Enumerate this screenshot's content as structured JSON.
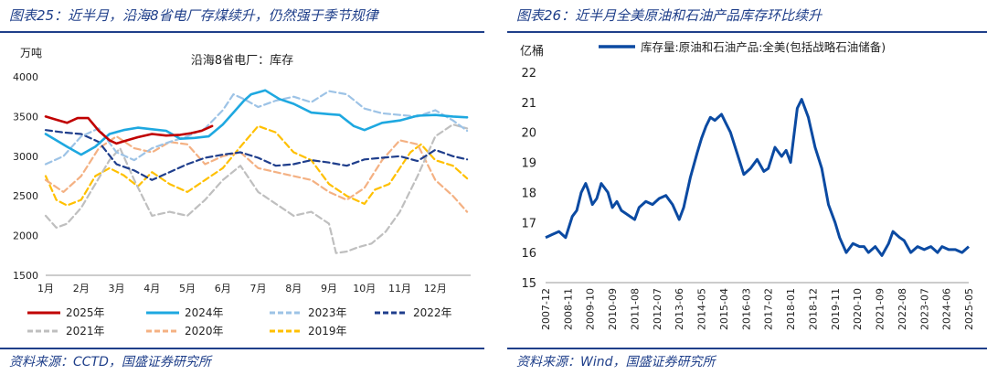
{
  "left": {
    "figure_title": "图表25：近半月，沿海8省电厂存煤续升，仍然强于季节规律",
    "source": "资料来源：CCTD，国盛证券研究所"
  },
  "right": {
    "figure_title": "图表26：近半月全美原油和石油产品库存环比续升",
    "source": "资料来源：Wind，国盛证券研究所"
  },
  "colors": {
    "2025": "#c00000",
    "2024": "#1ea8e0",
    "2023": "#9dc3e6",
    "2022": "#1f3e8c",
    "2021": "#bfbfbf",
    "2020": "#f4b183",
    "2019": "#ffc000",
    "us": "#0b4aa2"
  },
  "chart_data": [
    {
      "type": "line",
      "title": "沿海8省电厂：库存",
      "ylabel": "万吨",
      "ylim": [
        1500,
        4000
      ],
      "yticks": [
        1500,
        2000,
        2500,
        3000,
        3500,
        4000
      ],
      "x_ticks": [
        "1月",
        "2月",
        "3月",
        "4月",
        "5月",
        "6月",
        "7月",
        "8月",
        "9月",
        "10月",
        "11月",
        "12月"
      ],
      "xlim": [
        1,
        13
      ],
      "series": [
        {
          "name": "2025年",
          "style": "solid",
          "x": [
            1,
            1.3,
            1.6,
            1.9,
            2.2,
            2.5,
            2.8,
            3,
            3.3,
            3.6,
            4,
            4.4,
            4.8,
            5.1,
            5.4,
            5.7
          ],
          "values": [
            3500,
            3460,
            3420,
            3480,
            3480,
            3320,
            3200,
            3160,
            3200,
            3240,
            3280,
            3260,
            3270,
            3290,
            3320,
            3380
          ]
        },
        {
          "name": "2024年",
          "style": "solid",
          "x": [
            1,
            1.3,
            1.6,
            2,
            2.4,
            2.8,
            3.2,
            3.6,
            4,
            4.4,
            4.8,
            5.2,
            5.6,
            6,
            6.3,
            6.6,
            6.8,
            7.2,
            7.6,
            8,
            8.5,
            9,
            9.3,
            9.7,
            10,
            10.5,
            11,
            11.5,
            12,
            12.5,
            12.9
          ],
          "values": [
            3280,
            3200,
            3120,
            3020,
            3120,
            3280,
            3330,
            3360,
            3340,
            3320,
            3220,
            3230,
            3250,
            3400,
            3550,
            3700,
            3780,
            3830,
            3720,
            3660,
            3550,
            3530,
            3520,
            3380,
            3330,
            3420,
            3450,
            3510,
            3520,
            3500,
            3490
          ]
        },
        {
          "name": "2023年",
          "style": "dash",
          "x": [
            1,
            1.5,
            2,
            2.5,
            3,
            3.5,
            4,
            4.5,
            5,
            5.5,
            6,
            6.3,
            6.6,
            7,
            7.5,
            8,
            8.5,
            9,
            9.5,
            10,
            10.5,
            11,
            11.5,
            12,
            12.5,
            12.9
          ],
          "values": [
            2900,
            3000,
            3250,
            3350,
            3050,
            2950,
            3100,
            3180,
            3250,
            3350,
            3580,
            3780,
            3720,
            3620,
            3700,
            3750,
            3680,
            3820,
            3780,
            3600,
            3540,
            3520,
            3500,
            3580,
            3450,
            3320
          ]
        },
        {
          "name": "2022年",
          "style": "dash",
          "x": [
            1,
            1.5,
            2,
            2.5,
            3,
            3.5,
            4,
            4.5,
            5,
            5.5,
            6,
            6.5,
            7,
            7.5,
            8,
            8.5,
            9,
            9.5,
            10,
            10.5,
            11,
            11.5,
            12,
            12.5,
            12.9
          ],
          "values": [
            3330,
            3300,
            3280,
            3180,
            2900,
            2820,
            2700,
            2800,
            2900,
            2980,
            3020,
            3050,
            2980,
            2880,
            2900,
            2950,
            2920,
            2880,
            2960,
            2980,
            3000,
            2940,
            3080,
            3000,
            2960
          ]
        },
        {
          "name": "2021年",
          "style": "dash",
          "x": [
            1,
            1.3,
            1.6,
            2,
            2.4,
            2.8,
            3.1,
            3.5,
            4,
            4.5,
            5,
            5.5,
            6,
            6.5,
            7,
            7.5,
            8,
            8.5,
            9,
            9.2,
            9.5,
            9.8,
            10.2,
            10.6,
            11,
            11.5,
            12,
            12.5,
            12.9
          ],
          "values": [
            2250,
            2100,
            2150,
            2350,
            2650,
            2950,
            3100,
            2700,
            2250,
            2300,
            2250,
            2450,
            2700,
            2880,
            2550,
            2400,
            2250,
            2300,
            2150,
            1780,
            1800,
            1850,
            1900,
            2050,
            2300,
            2750,
            3250,
            3400,
            3350
          ]
        },
        {
          "name": "2020年",
          "style": "dash",
          "x": [
            1,
            1.5,
            2,
            2.5,
            3,
            3.5,
            4,
            4.5,
            5,
            5.5,
            6,
            6.5,
            7,
            7.5,
            8,
            8.5,
            9,
            9.5,
            10,
            10.5,
            11,
            11.5,
            12,
            12.5,
            12.9
          ],
          "values": [
            2700,
            2550,
            2750,
            3100,
            3250,
            3100,
            3050,
            3180,
            3150,
            2900,
            3000,
            3050,
            2850,
            2800,
            2750,
            2700,
            2550,
            2450,
            2600,
            2950,
            3200,
            3150,
            2700,
            2500,
            2300
          ]
        },
        {
          "name": "2019年",
          "style": "dash",
          "x": [
            1,
            1.3,
            1.6,
            2,
            2.4,
            2.8,
            3.2,
            3.6,
            4,
            4.5,
            5,
            5.5,
            6,
            6.5,
            7,
            7.5,
            8,
            8.5,
            9,
            9.5,
            10,
            10.3,
            10.7,
            11,
            11.3,
            11.6,
            12,
            12.5,
            12.9
          ],
          "values": [
            2750,
            2450,
            2380,
            2450,
            2750,
            2850,
            2760,
            2620,
            2800,
            2650,
            2550,
            2700,
            2850,
            3120,
            3380,
            3300,
            3050,
            2950,
            2650,
            2500,
            2400,
            2580,
            2650,
            2850,
            3050,
            3150,
            2950,
            2880,
            2720
          ]
        }
      ]
    },
    {
      "type": "line",
      "title": "库存量:原油和石油产品:全美(包括战略石油储备)",
      "ylabel": "亿桶",
      "ylim": [
        15,
        22
      ],
      "yticks": [
        15,
        16,
        17,
        18,
        19,
        20,
        21,
        22
      ],
      "x_ticks": [
        "2007-12",
        "2008-11",
        "2009-10",
        "2010-09",
        "2011-08",
        "2012-07",
        "2013-06",
        "2014-05",
        "2015-04",
        "2016-03",
        "2017-02",
        "2018-01",
        "2018-12",
        "2019-11",
        "2020-10",
        "2021-09",
        "2022-08",
        "2023-07",
        "2024-06",
        "2025-05"
      ],
      "series": [
        {
          "name": "库存量:原油和石油产品:全美(包括战略石油储备)",
          "x": [
            0,
            0.3,
            0.6,
            0.9,
            1.2,
            1.4,
            1.6,
            1.8,
            1.9,
            2.1,
            2.3,
            2.5,
            2.8,
            3.0,
            3.2,
            3.4,
            3.6,
            3.8,
            4.0,
            4.2,
            4.5,
            4.8,
            5.1,
            5.4,
            5.7,
            6.0,
            6.2,
            6.5,
            6.8,
            7.0,
            7.2,
            7.4,
            7.6,
            7.9,
            8.1,
            8.3,
            8.6,
            8.9,
            9.2,
            9.5,
            9.8,
            10.0,
            10.3,
            10.6,
            10.8,
            11.0,
            11.3,
            11.5,
            11.8,
            12.1,
            12.4,
            12.7,
            13.0,
            13.2,
            13.5,
            13.8,
            14.1,
            14.3,
            14.5,
            14.8,
            15.1,
            15.4,
            15.6,
            15.9,
            16.1,
            16.4,
            16.7,
            17.0,
            17.3,
            17.6,
            17.8,
            18.1,
            18.4,
            18.7,
            19.0
          ],
          "values": [
            16.5,
            16.6,
            16.7,
            16.5,
            17.2,
            17.4,
            18.0,
            18.3,
            18.1,
            17.6,
            17.8,
            18.3,
            18.0,
            17.5,
            17.7,
            17.4,
            17.3,
            17.2,
            17.1,
            17.5,
            17.7,
            17.6,
            17.8,
            17.9,
            17.6,
            17.1,
            17.5,
            18.5,
            19.3,
            19.8,
            20.2,
            20.5,
            20.4,
            20.6,
            20.3,
            20.0,
            19.3,
            18.6,
            18.8,
            19.1,
            18.7,
            18.8,
            19.5,
            19.2,
            19.4,
            19.0,
            20.8,
            21.1,
            20.5,
            19.5,
            18.8,
            17.6,
            17.0,
            16.5,
            16.0,
            16.3,
            16.2,
            16.2,
            16.0,
            16.2,
            15.9,
            16.3,
            16.7,
            16.5,
            16.4,
            16.0,
            16.2,
            16.1,
            16.2,
            16.0,
            16.2,
            16.1,
            16.1,
            16.0,
            16.2
          ]
        }
      ]
    }
  ]
}
